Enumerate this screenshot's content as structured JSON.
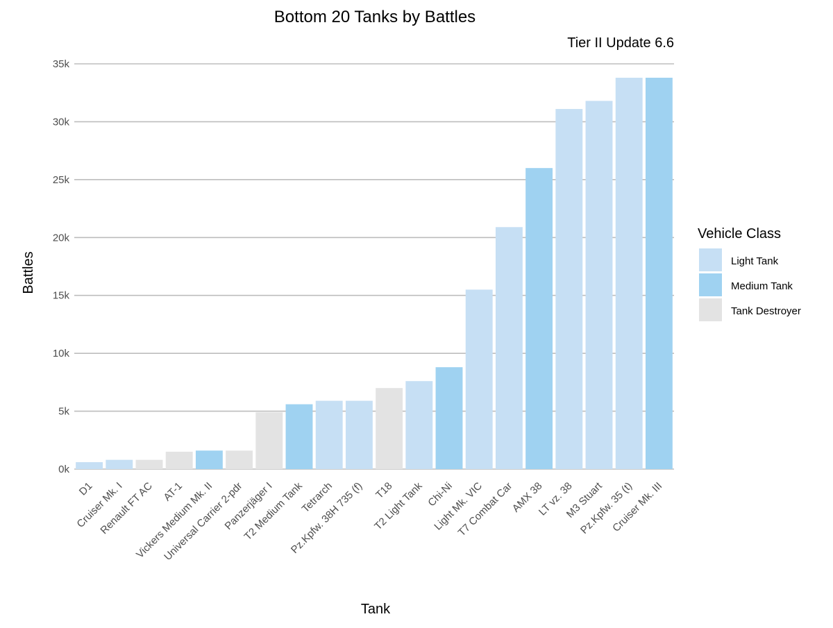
{
  "chart_data": {
    "type": "bar",
    "title": "Bottom 20 Tanks by Battles",
    "subtitle": "Tier II Update 6.6",
    "xlabel": "Tank",
    "ylabel": "Battles",
    "ylim": [
      0,
      35000
    ],
    "yticks": [
      0,
      5000,
      10000,
      15000,
      20000,
      25000,
      30000,
      35000
    ],
    "ytick_labels": [
      "0k",
      "5k",
      "10k",
      "15k",
      "20k",
      "25k",
      "30k",
      "35k"
    ],
    "grid": true,
    "legend": {
      "title": "Vehicle Class",
      "placement": "right",
      "entries": [
        {
          "name": "Light Tank",
          "color": "#c6dff4"
        },
        {
          "name": "Medium Tank",
          "color": "#9fd2f1"
        },
        {
          "name": "Tank Destroyer",
          "color": "#e3e3e3"
        }
      ]
    },
    "categories": [
      "D1",
      "Cruiser Mk. I",
      "Renault FT AC",
      "AT-1",
      "Vickers Medium Mk. II",
      "Universal Carrier 2-pdr",
      "Panzerjäger I",
      "T2 Medium Tank",
      "Tetrarch",
      "Pz.Kpfw. 38H 735 (f)",
      "T18",
      "T2 Light Tank",
      "Chi-Ni",
      "Light Mk. VIC",
      "T7 Combat Car",
      "AMX 38",
      "LT vz. 38",
      "M3 Stuart",
      "Pz.Kpfw. 35 (t)",
      "Cruiser Mk. III"
    ],
    "values": [
      600,
      800,
      800,
      1500,
      1600,
      1600,
      4900,
      5600,
      5900,
      5900,
      7000,
      7600,
      8800,
      15500,
      20900,
      26000,
      31100,
      31800,
      33800,
      33800
    ],
    "classes": [
      "Light Tank",
      "Light Tank",
      "Tank Destroyer",
      "Tank Destroyer",
      "Medium Tank",
      "Tank Destroyer",
      "Tank Destroyer",
      "Medium Tank",
      "Light Tank",
      "Light Tank",
      "Tank Destroyer",
      "Light Tank",
      "Medium Tank",
      "Light Tank",
      "Light Tank",
      "Medium Tank",
      "Light Tank",
      "Light Tank",
      "Light Tank",
      "Medium Tank"
    ]
  }
}
